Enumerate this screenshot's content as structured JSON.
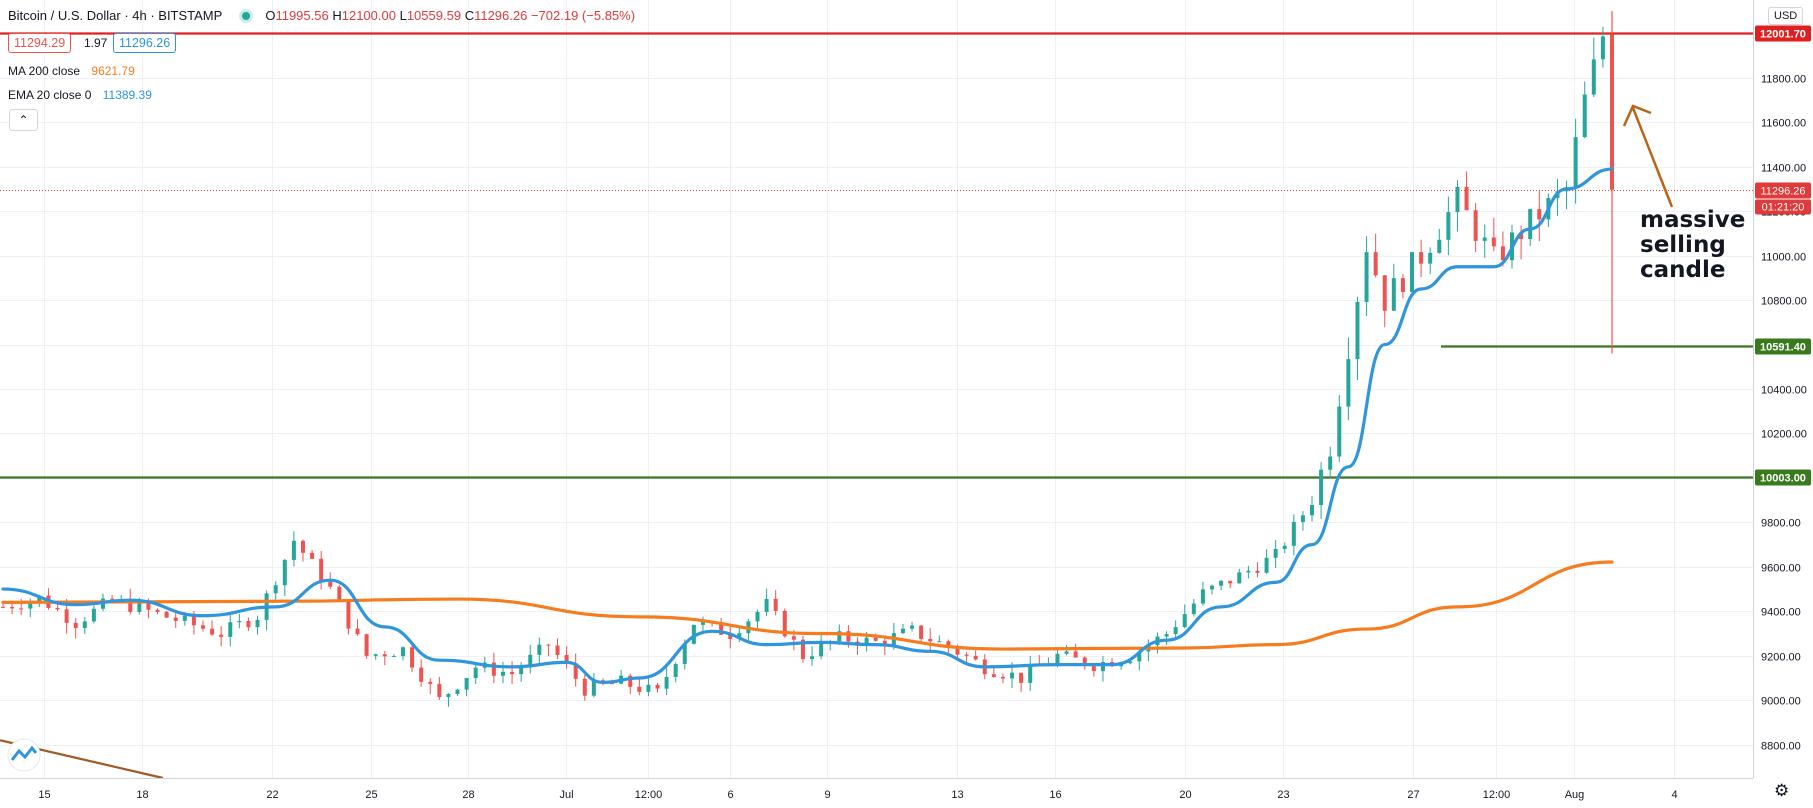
{
  "header": {
    "symbol": "Bitcoin / U.S. Dollar · 4h · BITSTAMP",
    "o_label": "O",
    "o": "11995.56",
    "h_label": "H",
    "h": "12100.00",
    "l_label": "L",
    "l": "10559.59",
    "c_label": "C",
    "c": "11296.26",
    "change": "−702.19 (−5.85%)",
    "bid": "11294.29",
    "spread": "1.97",
    "ask": "11296.26"
  },
  "indicators": {
    "ma": {
      "label": "MA 200 close",
      "value": "9621.79",
      "color": "#f57c1f"
    },
    "ema": {
      "label": "EMA 20 close 0",
      "value": "11389.39",
      "color": "#2f95dc"
    }
  },
  "currency": "USD",
  "collapse_icon": "chevron-up-icon",
  "settings_icon": "gear-icon",
  "annotation": {
    "lines": [
      "massive",
      "selling",
      "candle"
    ]
  },
  "colors": {
    "up": "#26a69a",
    "down": "#ef5350",
    "resistance": "#e02020",
    "support": "#3a7a1e",
    "arrow": "#b8651a",
    "price_line": "#e03a3a"
  },
  "chart_data": {
    "type": "candlestick",
    "title": "Bitcoin / U.S. Dollar · 4h · BITSTAMP",
    "ylim": [
      8650,
      12150
    ],
    "y_ticks": [
      "8800.00",
      "9000.00",
      "9200.00",
      "9400.00",
      "9600.00",
      "9800.00",
      "10000.00",
      "10200.00",
      "10400.00",
      "10600.00",
      "10800.00",
      "11000.00",
      "11200.00",
      "11400.00",
      "11600.00",
      "11800.00"
    ],
    "x_ticks": [
      "15",
      "18",
      "22",
      "25",
      "28",
      "Jul",
      "12:00",
      "6",
      "9",
      "13",
      "16",
      "20",
      "23",
      "27",
      "12:00",
      "Aug",
      "4"
    ],
    "levels": [
      {
        "name": "resistance",
        "value": 12001.7,
        "label": "12001.70"
      },
      {
        "name": "support-upper",
        "value": 10591.4,
        "label": "10591.40"
      },
      {
        "name": "support-lower",
        "value": 10003.0,
        "label": "10003.00"
      }
    ],
    "last_price": {
      "value": 11296.26,
      "label": "11296.26",
      "countdown": "01:21:20"
    },
    "ohlc_last_candle": {
      "open": 11995.56,
      "high": 12100.0,
      "low": 10559.59,
      "close": 11296.26
    },
    "close_path": [
      [
        0,
        9420
      ],
      [
        4,
        9460
      ],
      [
        8,
        9350
      ],
      [
        12,
        9450
      ],
      [
        16,
        9400
      ],
      [
        20,
        9350
      ],
      [
        24,
        9300
      ],
      [
        28,
        9380
      ],
      [
        32,
        9720
      ],
      [
        36,
        9500
      ],
      [
        40,
        9200
      ],
      [
        44,
        9230
      ],
      [
        48,
        9000
      ],
      [
        52,
        9150
      ],
      [
        56,
        9120
      ],
      [
        60,
        9250
      ],
      [
        64,
        9050
      ],
      [
        68,
        9080
      ],
      [
        72,
        9030
      ],
      [
        76,
        9350
      ],
      [
        80,
        9300
      ],
      [
        84,
        9430
      ],
      [
        88,
        9200
      ],
      [
        92,
        9280
      ],
      [
        96,
        9260
      ],
      [
        100,
        9310
      ],
      [
        104,
        9240
      ],
      [
        108,
        9150
      ],
      [
        112,
        9100
      ],
      [
        116,
        9200
      ],
      [
        120,
        9160
      ],
      [
        124,
        9200
      ],
      [
        128,
        9300
      ],
      [
        132,
        9480
      ],
      [
        136,
        9560
      ],
      [
        140,
        9650
      ],
      [
        144,
        9900
      ],
      [
        146,
        10150
      ],
      [
        148,
        10600
      ],
      [
        150,
        11050
      ],
      [
        152,
        10800
      ],
      [
        156,
        11000
      ],
      [
        160,
        11250
      ],
      [
        164,
        10980
      ],
      [
        168,
        11150
      ],
      [
        172,
        11300
      ],
      [
        174,
        11700
      ],
      [
        176,
        11990
      ],
      [
        177,
        11296.26
      ]
    ],
    "ma200": [
      [
        0,
        9440
      ],
      [
        30,
        9445
      ],
      [
        50,
        9455
      ],
      [
        70,
        9375
      ],
      [
        90,
        9300
      ],
      [
        110,
        9230
      ],
      [
        130,
        9235
      ],
      [
        140,
        9250
      ],
      [
        150,
        9320
      ],
      [
        160,
        9420
      ],
      [
        177,
        9621.79
      ]
    ],
    "ema20": [
      [
        0,
        9500
      ],
      [
        8,
        9430
      ],
      [
        14,
        9450
      ],
      [
        22,
        9380
      ],
      [
        30,
        9420
      ],
      [
        36,
        9540
      ],
      [
        42,
        9330
      ],
      [
        48,
        9180
      ],
      [
        56,
        9150
      ],
      [
        62,
        9170
      ],
      [
        66,
        9080
      ],
      [
        70,
        9100
      ],
      [
        78,
        9310
      ],
      [
        84,
        9250
      ],
      [
        90,
        9260
      ],
      [
        96,
        9250
      ],
      [
        102,
        9220
      ],
      [
        108,
        9150
      ],
      [
        116,
        9160
      ],
      [
        122,
        9160
      ],
      [
        128,
        9270
      ],
      [
        134,
        9420
      ],
      [
        140,
        9530
      ],
      [
        144,
        9700
      ],
      [
        148,
        10050
      ],
      [
        152,
        10600
      ],
      [
        156,
        10850
      ],
      [
        160,
        10950
      ],
      [
        164,
        10950
      ],
      [
        168,
        11120
      ],
      [
        172,
        11300
      ],
      [
        177,
        11389.39
      ]
    ]
  }
}
